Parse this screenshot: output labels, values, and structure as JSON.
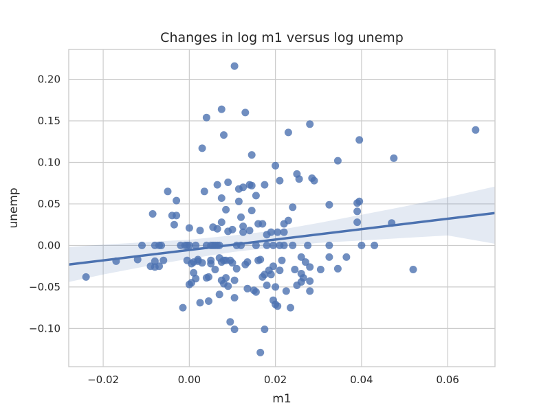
{
  "chart_data": {
    "type": "scatter",
    "title": "Changes in log m1 versus log unemp",
    "xlabel": "m1",
    "ylabel": "unemp",
    "xlim": [
      -0.028,
      0.071
    ],
    "ylim": [
      -0.146,
      0.236
    ],
    "grid": true,
    "x_ticks": [
      -0.02,
      0.0,
      0.02,
      0.04,
      0.06
    ],
    "x_tick_labels": [
      "−0.02",
      "0.00",
      "0.02",
      "0.04",
      "0.06"
    ],
    "y_ticks": [
      -0.1,
      -0.05,
      0.0,
      0.05,
      0.1,
      0.15,
      0.2
    ],
    "y_tick_labels": [
      "−0.10",
      "−0.05",
      "0.00",
      "0.05",
      "0.10",
      "0.15",
      "0.20"
    ],
    "colors": {
      "points": "#4c72b0",
      "regression": "#4c72b0",
      "band": "#4c72b0"
    },
    "regression": {
      "x0": -0.028,
      "y0": -0.023,
      "x1": 0.071,
      "y1": 0.039
    },
    "confidence_band": {
      "x": [
        -0.028,
        -0.02,
        -0.01,
        0.0,
        0.01,
        0.02,
        0.03,
        0.04,
        0.05,
        0.06,
        0.071
      ],
      "upper": [
        -0.002,
        0.001,
        0.004,
        0.007,
        0.012,
        0.018,
        0.027,
        0.037,
        0.047,
        0.058,
        0.071
      ],
      "lower": [
        -0.044,
        -0.035,
        -0.025,
        -0.016,
        -0.008,
        -0.002,
        0.003,
        0.006,
        0.009,
        0.012,
        0.002
      ]
    },
    "points": [
      {
        "x": -0.024,
        "y": -0.038
      },
      {
        "x": -0.017,
        "y": -0.019
      },
      {
        "x": -0.012,
        "y": -0.017
      },
      {
        "x": -0.011,
        "y": 0.0
      },
      {
        "x": -0.009,
        "y": -0.025
      },
      {
        "x": -0.0085,
        "y": 0.038
      },
      {
        "x": -0.008,
        "y": 0.0
      },
      {
        "x": -0.008,
        "y": -0.026
      },
      {
        "x": -0.008,
        "y": -0.019
      },
      {
        "x": -0.007,
        "y": -0.025
      },
      {
        "x": -0.007,
        "y": 0.0
      },
      {
        "x": -0.0065,
        "y": 0.0
      },
      {
        "x": -0.006,
        "y": -0.018
      },
      {
        "x": -0.005,
        "y": 0.065
      },
      {
        "x": -0.004,
        "y": 0.036
      },
      {
        "x": -0.0035,
        "y": 0.025
      },
      {
        "x": -0.003,
        "y": 0.054
      },
      {
        "x": -0.003,
        "y": 0.036
      },
      {
        "x": -0.002,
        "y": 0.0
      },
      {
        "x": -0.0015,
        "y": -0.075
      },
      {
        "x": -0.001,
        "y": 0.0
      },
      {
        "x": -0.0005,
        "y": 0.0
      },
      {
        "x": -0.0005,
        "y": -0.018
      },
      {
        "x": 0.0,
        "y": -0.047
      },
      {
        "x": 0.0,
        "y": 0.021
      },
      {
        "x": 0.0,
        "y": 0.0
      },
      {
        "x": 0.0005,
        "y": -0.022
      },
      {
        "x": 0.0005,
        "y": -0.045
      },
      {
        "x": 0.001,
        "y": -0.033
      },
      {
        "x": 0.001,
        "y": -0.02
      },
      {
        "x": 0.0015,
        "y": -0.04
      },
      {
        "x": 0.0015,
        "y": 0.0
      },
      {
        "x": 0.002,
        "y": -0.017
      },
      {
        "x": 0.002,
        "y": -0.019
      },
      {
        "x": 0.0025,
        "y": -0.069
      },
      {
        "x": 0.0025,
        "y": 0.018
      },
      {
        "x": 0.003,
        "y": 0.117
      },
      {
        "x": 0.003,
        "y": -0.021
      },
      {
        "x": 0.0035,
        "y": 0.065
      },
      {
        "x": 0.004,
        "y": 0.154
      },
      {
        "x": 0.004,
        "y": -0.039
      },
      {
        "x": 0.004,
        "y": 0.0
      },
      {
        "x": 0.0045,
        "y": -0.067
      },
      {
        "x": 0.0045,
        "y": -0.038
      },
      {
        "x": 0.005,
        "y": -0.022
      },
      {
        "x": 0.005,
        "y": -0.018
      },
      {
        "x": 0.005,
        "y": 0.0
      },
      {
        "x": 0.0055,
        "y": 0.0
      },
      {
        "x": 0.0055,
        "y": 0.022
      },
      {
        "x": 0.006,
        "y": -0.029
      },
      {
        "x": 0.006,
        "y": 0.0
      },
      {
        "x": 0.0065,
        "y": 0.073
      },
      {
        "x": 0.0065,
        "y": 0.02
      },
      {
        "x": 0.0065,
        "y": 0.0
      },
      {
        "x": 0.007,
        "y": -0.059
      },
      {
        "x": 0.007,
        "y": -0.015
      },
      {
        "x": 0.007,
        "y": 0.0
      },
      {
        "x": 0.0075,
        "y": 0.164
      },
      {
        "x": 0.0075,
        "y": 0.057
      },
      {
        "x": 0.0075,
        "y": 0.028
      },
      {
        "x": 0.0075,
        "y": -0.02
      },
      {
        "x": 0.0075,
        "y": -0.042
      },
      {
        "x": 0.008,
        "y": 0.133
      },
      {
        "x": 0.008,
        "y": -0.046
      },
      {
        "x": 0.008,
        "y": -0.018
      },
      {
        "x": 0.0085,
        "y": 0.043
      },
      {
        "x": 0.0085,
        "y": -0.039
      },
      {
        "x": 0.0085,
        "y": -0.018
      },
      {
        "x": 0.009,
        "y": 0.076
      },
      {
        "x": 0.009,
        "y": -0.049
      },
      {
        "x": 0.009,
        "y": 0.017
      },
      {
        "x": 0.0095,
        "y": -0.092
      },
      {
        "x": 0.0095,
        "y": -0.018
      },
      {
        "x": 0.01,
        "y": 0.019
      },
      {
        "x": 0.01,
        "y": -0.021
      },
      {
        "x": 0.0105,
        "y": 0.216
      },
      {
        "x": 0.0105,
        "y": -0.101
      },
      {
        "x": 0.0105,
        "y": -0.063
      },
      {
        "x": 0.0105,
        "y": -0.042
      },
      {
        "x": 0.011,
        "y": 0.0
      },
      {
        "x": 0.011,
        "y": -0.028
      },
      {
        "x": 0.0115,
        "y": 0.068
      },
      {
        "x": 0.0115,
        "y": 0.053
      },
      {
        "x": 0.012,
        "y": 0.034
      },
      {
        "x": 0.012,
        "y": 0.0
      },
      {
        "x": 0.0125,
        "y": 0.07
      },
      {
        "x": 0.0125,
        "y": 0.023
      },
      {
        "x": 0.0125,
        "y": 0.016
      },
      {
        "x": 0.013,
        "y": 0.16
      },
      {
        "x": 0.013,
        "y": -0.023
      },
      {
        "x": 0.0135,
        "y": -0.02
      },
      {
        "x": 0.0135,
        "y": -0.052
      },
      {
        "x": 0.014,
        "y": 0.073
      },
      {
        "x": 0.014,
        "y": 0.018
      },
      {
        "x": 0.0145,
        "y": 0.109
      },
      {
        "x": 0.0145,
        "y": 0.072
      },
      {
        "x": 0.0145,
        "y": 0.042
      },
      {
        "x": 0.015,
        "y": -0.054
      },
      {
        "x": 0.0155,
        "y": 0.06
      },
      {
        "x": 0.0155,
        "y": 0.0
      },
      {
        "x": 0.0155,
        "y": -0.056
      },
      {
        "x": 0.016,
        "y": 0.026
      },
      {
        "x": 0.016,
        "y": -0.018
      },
      {
        "x": 0.0165,
        "y": -0.129
      },
      {
        "x": 0.0165,
        "y": -0.017
      },
      {
        "x": 0.017,
        "y": 0.026
      },
      {
        "x": 0.017,
        "y": -0.038
      },
      {
        "x": 0.0175,
        "y": 0.073
      },
      {
        "x": 0.0175,
        "y": -0.035
      },
      {
        "x": 0.0175,
        "y": -0.101
      },
      {
        "x": 0.018,
        "y": 0.0
      },
      {
        "x": 0.018,
        "y": 0.013
      },
      {
        "x": 0.018,
        "y": -0.048
      },
      {
        "x": 0.0185,
        "y": -0.03
      },
      {
        "x": 0.019,
        "y": 0.016
      },
      {
        "x": 0.019,
        "y": -0.035
      },
      {
        "x": 0.0195,
        "y": 0.0
      },
      {
        "x": 0.0195,
        "y": -0.066
      },
      {
        "x": 0.0195,
        "y": -0.025
      },
      {
        "x": 0.02,
        "y": 0.096
      },
      {
        "x": 0.02,
        "y": -0.071
      },
      {
        "x": 0.02,
        "y": -0.05
      },
      {
        "x": 0.0205,
        "y": 0.016
      },
      {
        "x": 0.0205,
        "y": -0.073
      },
      {
        "x": 0.021,
        "y": 0.078
      },
      {
        "x": 0.021,
        "y": 0.0
      },
      {
        "x": 0.021,
        "y": -0.03
      },
      {
        "x": 0.0215,
        "y": -0.018
      },
      {
        "x": 0.022,
        "y": 0.026
      },
      {
        "x": 0.022,
        "y": 0.016
      },
      {
        "x": 0.022,
        "y": 0.0
      },
      {
        "x": 0.0225,
        "y": -0.055
      },
      {
        "x": 0.023,
        "y": 0.136
      },
      {
        "x": 0.023,
        "y": 0.03
      },
      {
        "x": 0.0235,
        "y": -0.075
      },
      {
        "x": 0.024,
        "y": 0.046
      },
      {
        "x": 0.024,
        "y": 0.0
      },
      {
        "x": 0.0245,
        "y": -0.029
      },
      {
        "x": 0.025,
        "y": 0.086
      },
      {
        "x": 0.025,
        "y": -0.048
      },
      {
        "x": 0.0255,
        "y": 0.08
      },
      {
        "x": 0.026,
        "y": -0.014
      },
      {
        "x": 0.026,
        "y": -0.034
      },
      {
        "x": 0.026,
        "y": -0.044
      },
      {
        "x": 0.0265,
        "y": -0.039
      },
      {
        "x": 0.027,
        "y": -0.02
      },
      {
        "x": 0.0275,
        "y": 0.0
      },
      {
        "x": 0.028,
        "y": 0.146
      },
      {
        "x": 0.028,
        "y": -0.026
      },
      {
        "x": 0.028,
        "y": -0.055
      },
      {
        "x": 0.028,
        "y": -0.043
      },
      {
        "x": 0.0285,
        "y": 0.081
      },
      {
        "x": 0.029,
        "y": 0.078
      },
      {
        "x": 0.0305,
        "y": -0.029
      },
      {
        "x": 0.0325,
        "y": 0.049
      },
      {
        "x": 0.0325,
        "y": 0.0
      },
      {
        "x": 0.0325,
        "y": -0.014
      },
      {
        "x": 0.0345,
        "y": 0.102
      },
      {
        "x": 0.0345,
        "y": -0.028
      },
      {
        "x": 0.0365,
        "y": -0.014
      },
      {
        "x": 0.039,
        "y": 0.051
      },
      {
        "x": 0.039,
        "y": 0.041
      },
      {
        "x": 0.039,
        "y": 0.028
      },
      {
        "x": 0.0395,
        "y": 0.127
      },
      {
        "x": 0.0395,
        "y": 0.053
      },
      {
        "x": 0.04,
        "y": 0.0
      },
      {
        "x": 0.043,
        "y": 0.0
      },
      {
        "x": 0.047,
        "y": 0.027
      },
      {
        "x": 0.0475,
        "y": 0.105
      },
      {
        "x": 0.052,
        "y": -0.029
      },
      {
        "x": 0.0665,
        "y": 0.139
      }
    ]
  }
}
